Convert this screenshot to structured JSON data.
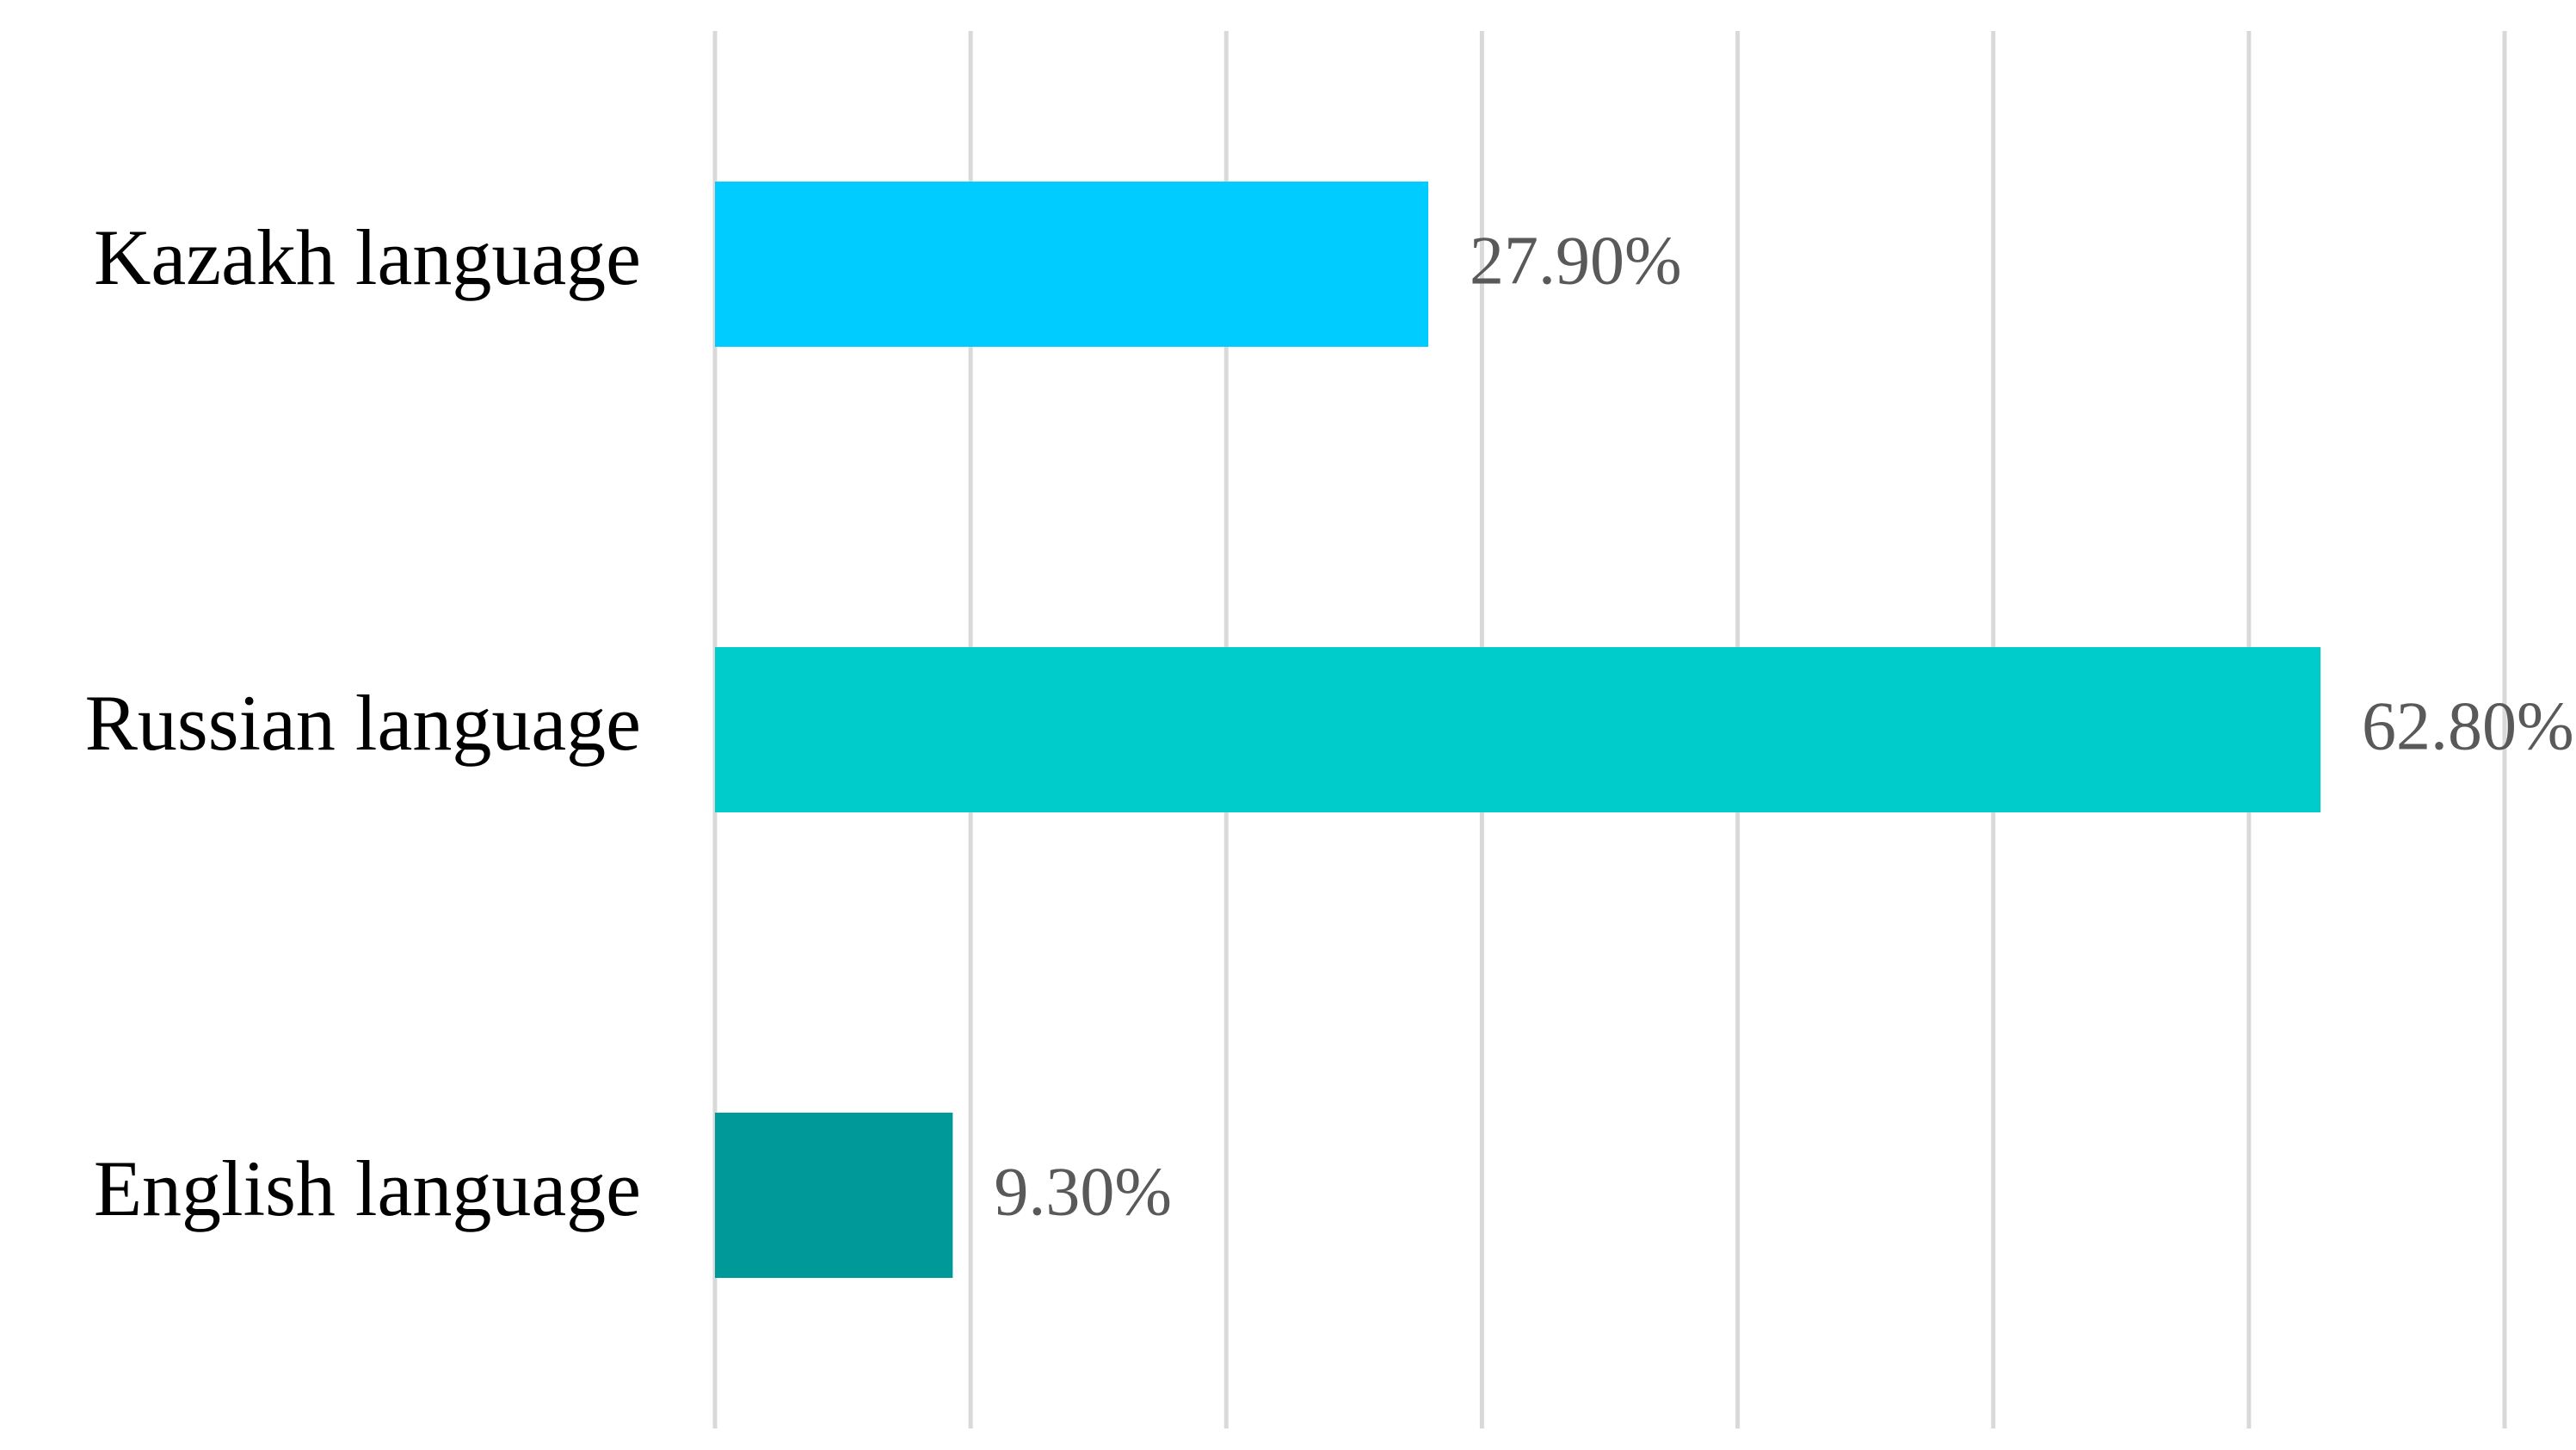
{
  "chart_data": {
    "type": "hbar",
    "categories": [
      "Kazakh language",
      "Russian language",
      "English language"
    ],
    "values": [
      27.9,
      62.8,
      9.3
    ],
    "value_labels": [
      "27.90%",
      "62.80%",
      "9.30%"
    ],
    "colors": [
      "#00ccff",
      "#00cccc",
      "#009999"
    ],
    "xlim": [
      0,
      70
    ],
    "xticks": [
      0,
      10,
      20,
      30,
      40,
      50,
      60,
      70
    ],
    "grid": true
  }
}
